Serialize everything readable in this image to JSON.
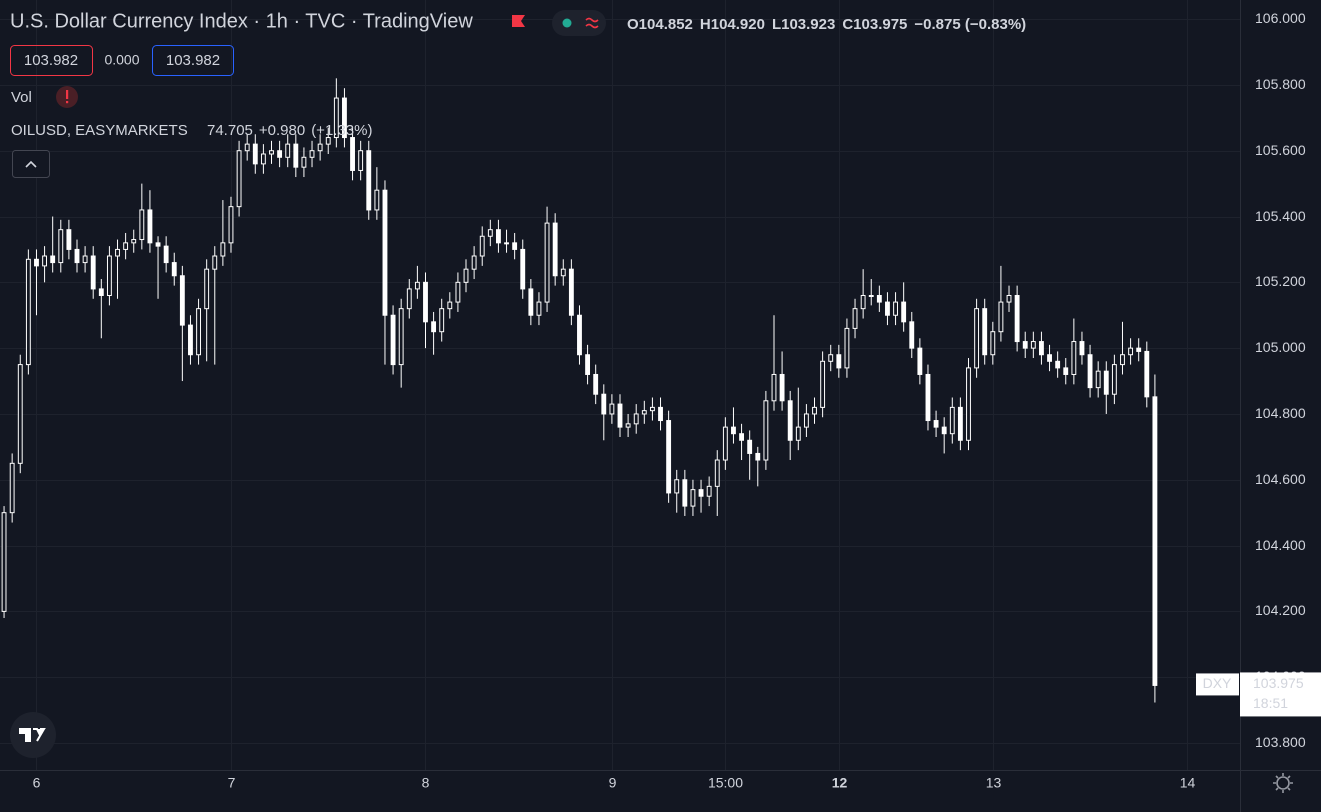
{
  "header": {
    "title": "U.S. Dollar Currency Index · 1h · TVC · TradingView",
    "ohlc": [
      "O104.852",
      "H104.920",
      "L103.923",
      "C103.975",
      "−0.875 (−0.83%)"
    ],
    "sell": "103.982",
    "spread": "0.000",
    "buy": "103.982",
    "vol": "Vol",
    "overlay": {
      "name": "OILUSD, EASYMARKETS",
      "price": "74.705",
      "change": "+0.980",
      "pct": "(+1.33%)"
    },
    "symbol": "DXY",
    "countdown": "18:51"
  },
  "chart_data": {
    "type": "candlestick",
    "color": "#ffffff",
    "ylim": [
      103.718,
      106.058
    ],
    "yticks": [
      {
        "value": 103.8,
        "label": "103.800"
      },
      {
        "value": 104.0,
        "label": "104.000"
      },
      {
        "value": 104.2,
        "label": "104.200"
      },
      {
        "value": 104.4,
        "label": "104.400"
      },
      {
        "value": 104.6,
        "label": "104.600"
      },
      {
        "value": 104.8,
        "label": "104.800"
      },
      {
        "value": 105.0,
        "label": "105.000"
      },
      {
        "value": 105.2,
        "label": "105.200"
      },
      {
        "value": 105.4,
        "label": "105.400"
      },
      {
        "value": 105.6,
        "label": "105.600"
      },
      {
        "value": 105.8,
        "label": "105.800"
      },
      {
        "value": 106.0,
        "label": "106.000"
      }
    ],
    "xlim": [
      -0.5,
      152.5
    ],
    "xticks": [
      {
        "value": 4,
        "label": "6"
      },
      {
        "value": 28,
        "label": "7"
      },
      {
        "value": 52,
        "label": "8"
      },
      {
        "value": 75,
        "label": "9"
      },
      {
        "value": 89,
        "label": "15:00"
      },
      {
        "value": 103,
        "label": "12"
      },
      {
        "value": 122,
        "label": "13"
      },
      {
        "value": 146,
        "label": "14"
      }
    ],
    "candles": [
      [
        104.2,
        104.52,
        104.18,
        104.5
      ],
      [
        104.5,
        104.68,
        104.47,
        104.65
      ],
      [
        104.65,
        104.98,
        104.62,
        104.95
      ],
      [
        104.95,
        105.3,
        104.92,
        105.27
      ],
      [
        105.27,
        105.3,
        105.1,
        105.25
      ],
      [
        105.25,
        105.31,
        105.2,
        105.28
      ],
      [
        105.28,
        105.4,
        105.23,
        105.26
      ],
      [
        105.26,
        105.39,
        105.23,
        105.36
      ],
      [
        105.36,
        105.39,
        105.27,
        105.3
      ],
      [
        105.3,
        105.33,
        105.23,
        105.26
      ],
      [
        105.26,
        105.31,
        105.23,
        105.28
      ],
      [
        105.28,
        105.31,
        105.15,
        105.18
      ],
      [
        105.18,
        105.21,
        105.03,
        105.16
      ],
      [
        105.16,
        105.31,
        105.13,
        105.28
      ],
      [
        105.28,
        105.33,
        105.15,
        105.3
      ],
      [
        105.3,
        105.35,
        105.27,
        105.32
      ],
      [
        105.32,
        105.36,
        105.29,
        105.33
      ],
      [
        105.33,
        105.5,
        105.3,
        105.42
      ],
      [
        105.42,
        105.48,
        105.29,
        105.32
      ],
      [
        105.32,
        105.34,
        105.15,
        105.31
      ],
      [
        105.31,
        105.34,
        105.23,
        105.26
      ],
      [
        105.26,
        105.29,
        105.19,
        105.22
      ],
      [
        105.22,
        105.25,
        104.9,
        105.07
      ],
      [
        105.07,
        105.1,
        104.95,
        104.98
      ],
      [
        104.98,
        105.15,
        104.95,
        105.12
      ],
      [
        105.12,
        105.27,
        104.96,
        105.24
      ],
      [
        105.24,
        105.31,
        104.95,
        105.28
      ],
      [
        105.28,
        105.45,
        105.25,
        105.32
      ],
      [
        105.32,
        105.46,
        105.29,
        105.43
      ],
      [
        105.43,
        105.63,
        105.4,
        105.6
      ],
      [
        105.6,
        105.65,
        105.57,
        105.62
      ],
      [
        105.62,
        105.65,
        105.53,
        105.56
      ],
      [
        105.56,
        105.62,
        105.53,
        105.59
      ],
      [
        105.59,
        105.63,
        105.56,
        105.6
      ],
      [
        105.6,
        105.63,
        105.55,
        105.58
      ],
      [
        105.58,
        105.65,
        105.55,
        105.62
      ],
      [
        105.62,
        105.65,
        105.52,
        105.55
      ],
      [
        105.55,
        105.61,
        105.52,
        105.58
      ],
      [
        105.58,
        105.63,
        105.55,
        105.6
      ],
      [
        105.6,
        105.65,
        105.57,
        105.62
      ],
      [
        105.62,
        105.67,
        105.59,
        105.64
      ],
      [
        105.64,
        105.82,
        105.61,
        105.76
      ],
      [
        105.76,
        105.79,
        105.61,
        105.64
      ],
      [
        105.64,
        105.67,
        105.51,
        105.54
      ],
      [
        105.54,
        105.63,
        105.51,
        105.6
      ],
      [
        105.6,
        105.63,
        105.39,
        105.42
      ],
      [
        105.42,
        105.55,
        105.39,
        105.48
      ],
      [
        105.48,
        105.51,
        104.95,
        105.1
      ],
      [
        105.1,
        105.13,
        104.92,
        104.95
      ],
      [
        104.95,
        105.15,
        104.88,
        105.12
      ],
      [
        105.12,
        105.21,
        105.09,
        105.18
      ],
      [
        105.18,
        105.25,
        105.15,
        105.2
      ],
      [
        105.2,
        105.23,
        105.0,
        105.08
      ],
      [
        105.08,
        105.11,
        104.98,
        105.05
      ],
      [
        105.05,
        105.15,
        105.02,
        105.12
      ],
      [
        105.12,
        105.17,
        105.09,
        105.14
      ],
      [
        105.14,
        105.23,
        105.11,
        105.2
      ],
      [
        105.2,
        105.27,
        105.17,
        105.24
      ],
      [
        105.24,
        105.31,
        105.21,
        105.28
      ],
      [
        105.28,
        105.37,
        105.25,
        105.34
      ],
      [
        105.34,
        105.39,
        105.31,
        105.36
      ],
      [
        105.36,
        105.39,
        105.29,
        105.32
      ],
      [
        105.32,
        105.36,
        105.29,
        105.32
      ],
      [
        105.32,
        105.35,
        105.27,
        105.3
      ],
      [
        105.3,
        105.33,
        105.15,
        105.18
      ],
      [
        105.18,
        105.21,
        105.07,
        105.1
      ],
      [
        105.1,
        105.17,
        105.07,
        105.14
      ],
      [
        105.14,
        105.43,
        105.11,
        105.38
      ],
      [
        105.38,
        105.41,
        105.19,
        105.22
      ],
      [
        105.22,
        105.27,
        105.19,
        105.24
      ],
      [
        105.24,
        105.27,
        105.07,
        105.1
      ],
      [
        105.1,
        105.13,
        104.95,
        104.98
      ],
      [
        104.98,
        105.01,
        104.89,
        104.92
      ],
      [
        104.92,
        104.95,
        104.83,
        104.86
      ],
      [
        104.86,
        104.89,
        104.72,
        104.8
      ],
      [
        104.8,
        104.86,
        104.77,
        104.83
      ],
      [
        104.83,
        104.86,
        104.73,
        104.76
      ],
      [
        104.76,
        104.8,
        104.73,
        104.77
      ],
      [
        104.77,
        104.83,
        104.74,
        104.8
      ],
      [
        104.8,
        104.84,
        104.77,
        104.81
      ],
      [
        104.81,
        104.85,
        104.78,
        104.82
      ],
      [
        104.82,
        104.85,
        104.75,
        104.78
      ],
      [
        104.78,
        104.81,
        104.53,
        104.56
      ],
      [
        104.56,
        104.63,
        104.5,
        104.6
      ],
      [
        104.6,
        104.63,
        104.49,
        104.52
      ],
      [
        104.52,
        104.6,
        104.49,
        104.57
      ],
      [
        104.57,
        104.6,
        104.5,
        104.55
      ],
      [
        104.55,
        104.61,
        104.52,
        104.58
      ],
      [
        104.58,
        104.69,
        104.49,
        104.66
      ],
      [
        104.66,
        104.79,
        104.63,
        104.76
      ],
      [
        104.76,
        104.82,
        104.71,
        104.74
      ],
      [
        104.74,
        104.77,
        104.66,
        104.72
      ],
      [
        104.72,
        104.75,
        104.6,
        104.68
      ],
      [
        104.68,
        104.7,
        104.58,
        104.66
      ],
      [
        104.66,
        104.87,
        104.63,
        104.84
      ],
      [
        104.84,
        105.1,
        104.81,
        104.92
      ],
      [
        104.92,
        104.99,
        104.81,
        104.84
      ],
      [
        104.84,
        104.87,
        104.66,
        104.72
      ],
      [
        104.72,
        104.88,
        104.69,
        104.76
      ],
      [
        104.76,
        104.83,
        104.73,
        104.8
      ],
      [
        104.8,
        104.85,
        104.77,
        104.82
      ],
      [
        104.82,
        104.99,
        104.79,
        104.96
      ],
      [
        104.96,
        105.01,
        104.93,
        104.98
      ],
      [
        104.98,
        105.01,
        104.91,
        104.94
      ],
      [
        104.94,
        105.09,
        104.91,
        105.06
      ],
      [
        105.06,
        105.15,
        105.03,
        105.12
      ],
      [
        105.12,
        105.24,
        105.09,
        105.16
      ],
      [
        105.16,
        105.21,
        105.13,
        105.16
      ],
      [
        105.16,
        105.19,
        105.11,
        105.14
      ],
      [
        105.14,
        105.17,
        105.07,
        105.1
      ],
      [
        105.1,
        105.17,
        105.07,
        105.14
      ],
      [
        105.14,
        105.2,
        105.05,
        105.08
      ],
      [
        105.08,
        105.11,
        104.97,
        105.0
      ],
      [
        105.0,
        105.03,
        104.89,
        104.92
      ],
      [
        104.92,
        104.95,
        104.75,
        104.78
      ],
      [
        104.78,
        104.81,
        104.73,
        104.76
      ],
      [
        104.76,
        104.79,
        104.68,
        104.74
      ],
      [
        104.74,
        104.85,
        104.71,
        104.82
      ],
      [
        104.82,
        104.85,
        104.69,
        104.72
      ],
      [
        104.72,
        104.97,
        104.69,
        104.94
      ],
      [
        104.94,
        105.15,
        104.91,
        105.12
      ],
      [
        105.12,
        105.15,
        104.95,
        104.98
      ],
      [
        104.98,
        105.08,
        104.95,
        105.05
      ],
      [
        105.05,
        105.25,
        105.02,
        105.14
      ],
      [
        105.14,
        105.19,
        105.11,
        105.16
      ],
      [
        105.16,
        105.19,
        104.99,
        105.02
      ],
      [
        105.02,
        105.05,
        104.97,
        105.0
      ],
      [
        105.0,
        105.05,
        104.97,
        105.02
      ],
      [
        105.02,
        105.05,
        104.95,
        104.98
      ],
      [
        104.98,
        105.01,
        104.93,
        104.96
      ],
      [
        104.96,
        104.99,
        104.91,
        104.94
      ],
      [
        104.94,
        104.97,
        104.89,
        104.92
      ],
      [
        104.92,
        105.09,
        104.89,
        105.02
      ],
      [
        105.02,
        105.05,
        104.95,
        104.98
      ],
      [
        104.98,
        105.01,
        104.85,
        104.88
      ],
      [
        104.88,
        104.96,
        104.85,
        104.93
      ],
      [
        104.93,
        104.96,
        104.8,
        104.86
      ],
      [
        104.86,
        104.98,
        104.83,
        104.95
      ],
      [
        104.95,
        105.08,
        104.92,
        104.98
      ],
      [
        104.98,
        105.03,
        104.95,
        105.0
      ],
      [
        105.0,
        105.03,
        104.96,
        104.99
      ],
      [
        104.99,
        105.02,
        104.82,
        104.852
      ],
      [
        104.852,
        104.92,
        103.923,
        103.975
      ]
    ]
  }
}
